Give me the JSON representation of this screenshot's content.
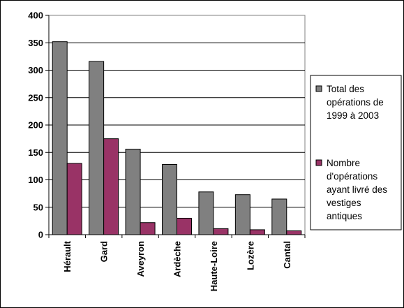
{
  "chart_data": {
    "type": "bar",
    "title": "",
    "xlabel": "",
    "ylabel": "",
    "categories": [
      "Hérault",
      "Gard",
      "Aveyron",
      "Ardèche",
      "Haute-Loire",
      "Lozère",
      "Cantal"
    ],
    "series": [
      {
        "name": "Total des opérations de 1999 à 2003",
        "legend_lines": [
          "Total des",
          "opérations de",
          "1999 à 2003"
        ],
        "color": "#808080",
        "values": [
          352,
          316,
          156,
          128,
          78,
          73,
          65
        ]
      },
      {
        "name": "Nombre d'opérations ayant livré des vestiges antiques",
        "legend_lines": [
          "Nombre",
          "d'opérations",
          "ayant livré des",
          "vestiges",
          "antiques"
        ],
        "color": "#993366",
        "values": [
          130,
          175,
          22,
          30,
          11,
          9,
          7
        ]
      }
    ],
    "ylim": [
      0,
      400
    ],
    "yticks": [
      "0",
      "50",
      "100",
      "150",
      "200",
      "250",
      "300",
      "350",
      "400"
    ],
    "grid": true,
    "legend_position": "right"
  }
}
